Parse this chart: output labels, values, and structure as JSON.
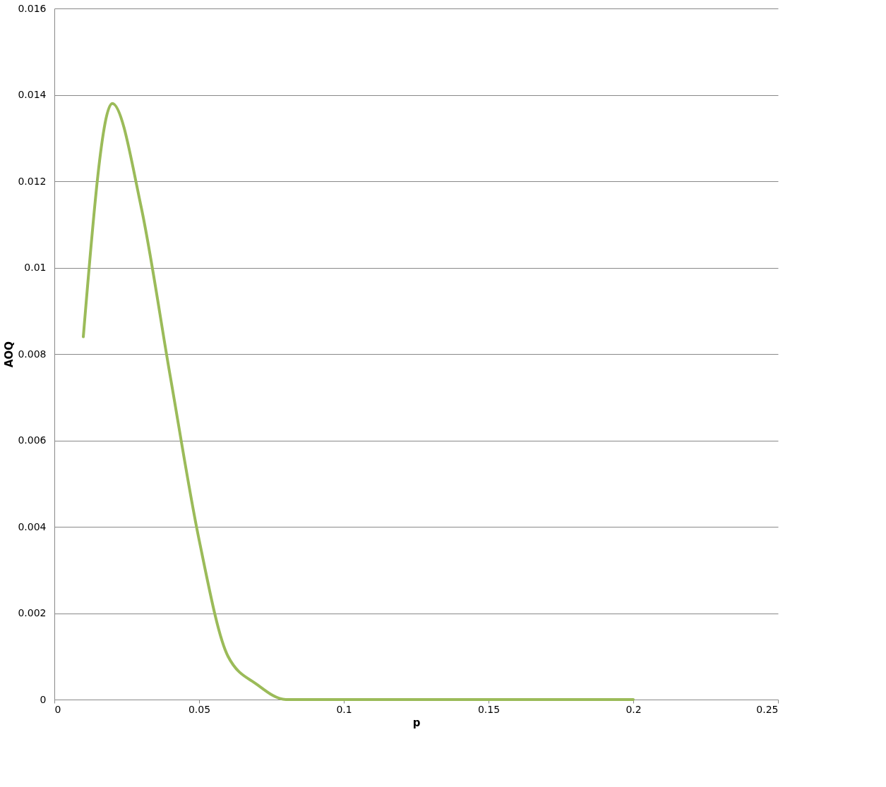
{
  "chart_data": {
    "type": "line",
    "xlabel": "p",
    "ylabel": "AOQ",
    "x": [
      0.01,
      0.02,
      0.03,
      0.04,
      0.05,
      0.06,
      0.07,
      0.08,
      0.09,
      0.1,
      0.11,
      0.12,
      0.13,
      0.14,
      0.15,
      0.16,
      0.17,
      0.18,
      0.19,
      0.2
    ],
    "series": [
      {
        "color": "#9bbb59",
        "values": [
          0.0084,
          0.0138,
          0.0114,
          0.0075,
          0.0037,
          0.001,
          0.00035,
          0,
          0,
          0,
          0,
          0,
          0,
          0,
          0,
          0,
          0,
          0,
          0,
          0
        ]
      }
    ],
    "xlim": [
      0,
      0.25
    ],
    "xticks": [
      0,
      0.05,
      0.1,
      0.15,
      0.2,
      0.25
    ],
    "ylim": [
      0,
      0.016
    ],
    "yticks": [
      0,
      0.002,
      0.004,
      0.006,
      0.008,
      0.01,
      0.012,
      0.014,
      0.016
    ],
    "grid": "y",
    "marker": "none",
    "line_style": "solid"
  }
}
